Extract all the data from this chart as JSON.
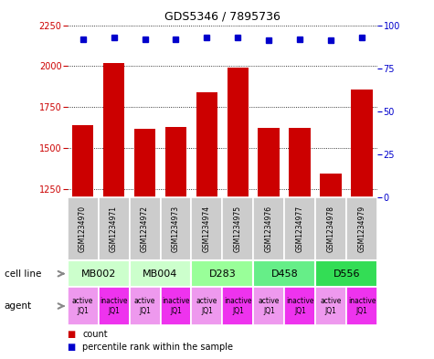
{
  "title": "GDS5346 / 7895736",
  "samples": [
    "GSM1234970",
    "GSM1234971",
    "GSM1234972",
    "GSM1234973",
    "GSM1234974",
    "GSM1234975",
    "GSM1234976",
    "GSM1234977",
    "GSM1234978",
    "GSM1234979"
  ],
  "counts": [
    1640,
    2020,
    1620,
    1630,
    1840,
    1990,
    1625,
    1625,
    1345,
    1855
  ],
  "percentiles": [
    92,
    93,
    92,
    92,
    93,
    93,
    91,
    92,
    91,
    93
  ],
  "ylim_left": [
    1200,
    2250
  ],
  "ylim_right": [
    0,
    100
  ],
  "yticks_left": [
    1250,
    1500,
    1750,
    2000,
    2250
  ],
  "yticks_right": [
    0,
    25,
    50,
    75,
    100
  ],
  "bar_color": "#cc0000",
  "dot_color": "#0000cc",
  "cell_lines": [
    {
      "label": "MB002",
      "cols": [
        0,
        1
      ],
      "color": "#ccffcc"
    },
    {
      "label": "MB004",
      "cols": [
        2,
        3
      ],
      "color": "#ccffcc"
    },
    {
      "label": "D283",
      "cols": [
        4,
        5
      ],
      "color": "#99ff99"
    },
    {
      "label": "D458",
      "cols": [
        6,
        7
      ],
      "color": "#66ee88"
    },
    {
      "label": "D556",
      "cols": [
        8,
        9
      ],
      "color": "#33dd55"
    }
  ],
  "agents": [
    "active\nJQ1",
    "inactive\nJQ1",
    "active\nJQ1",
    "inactive\nJQ1",
    "active\nJQ1",
    "inactive\nJQ1",
    "active\nJQ1",
    "inactive\nJQ1",
    "active\nJQ1",
    "inactive\nJQ1"
  ],
  "agent_active_color": "#ee99ee",
  "agent_inactive_color": "#ee33ee",
  "tick_bg_color": "#cccccc",
  "legend_red_label": "count",
  "legend_blue_label": "percentile rank within the sample",
  "cell_line_label": "cell line",
  "agent_label": "agent",
  "label_arrow_color": "#888888"
}
